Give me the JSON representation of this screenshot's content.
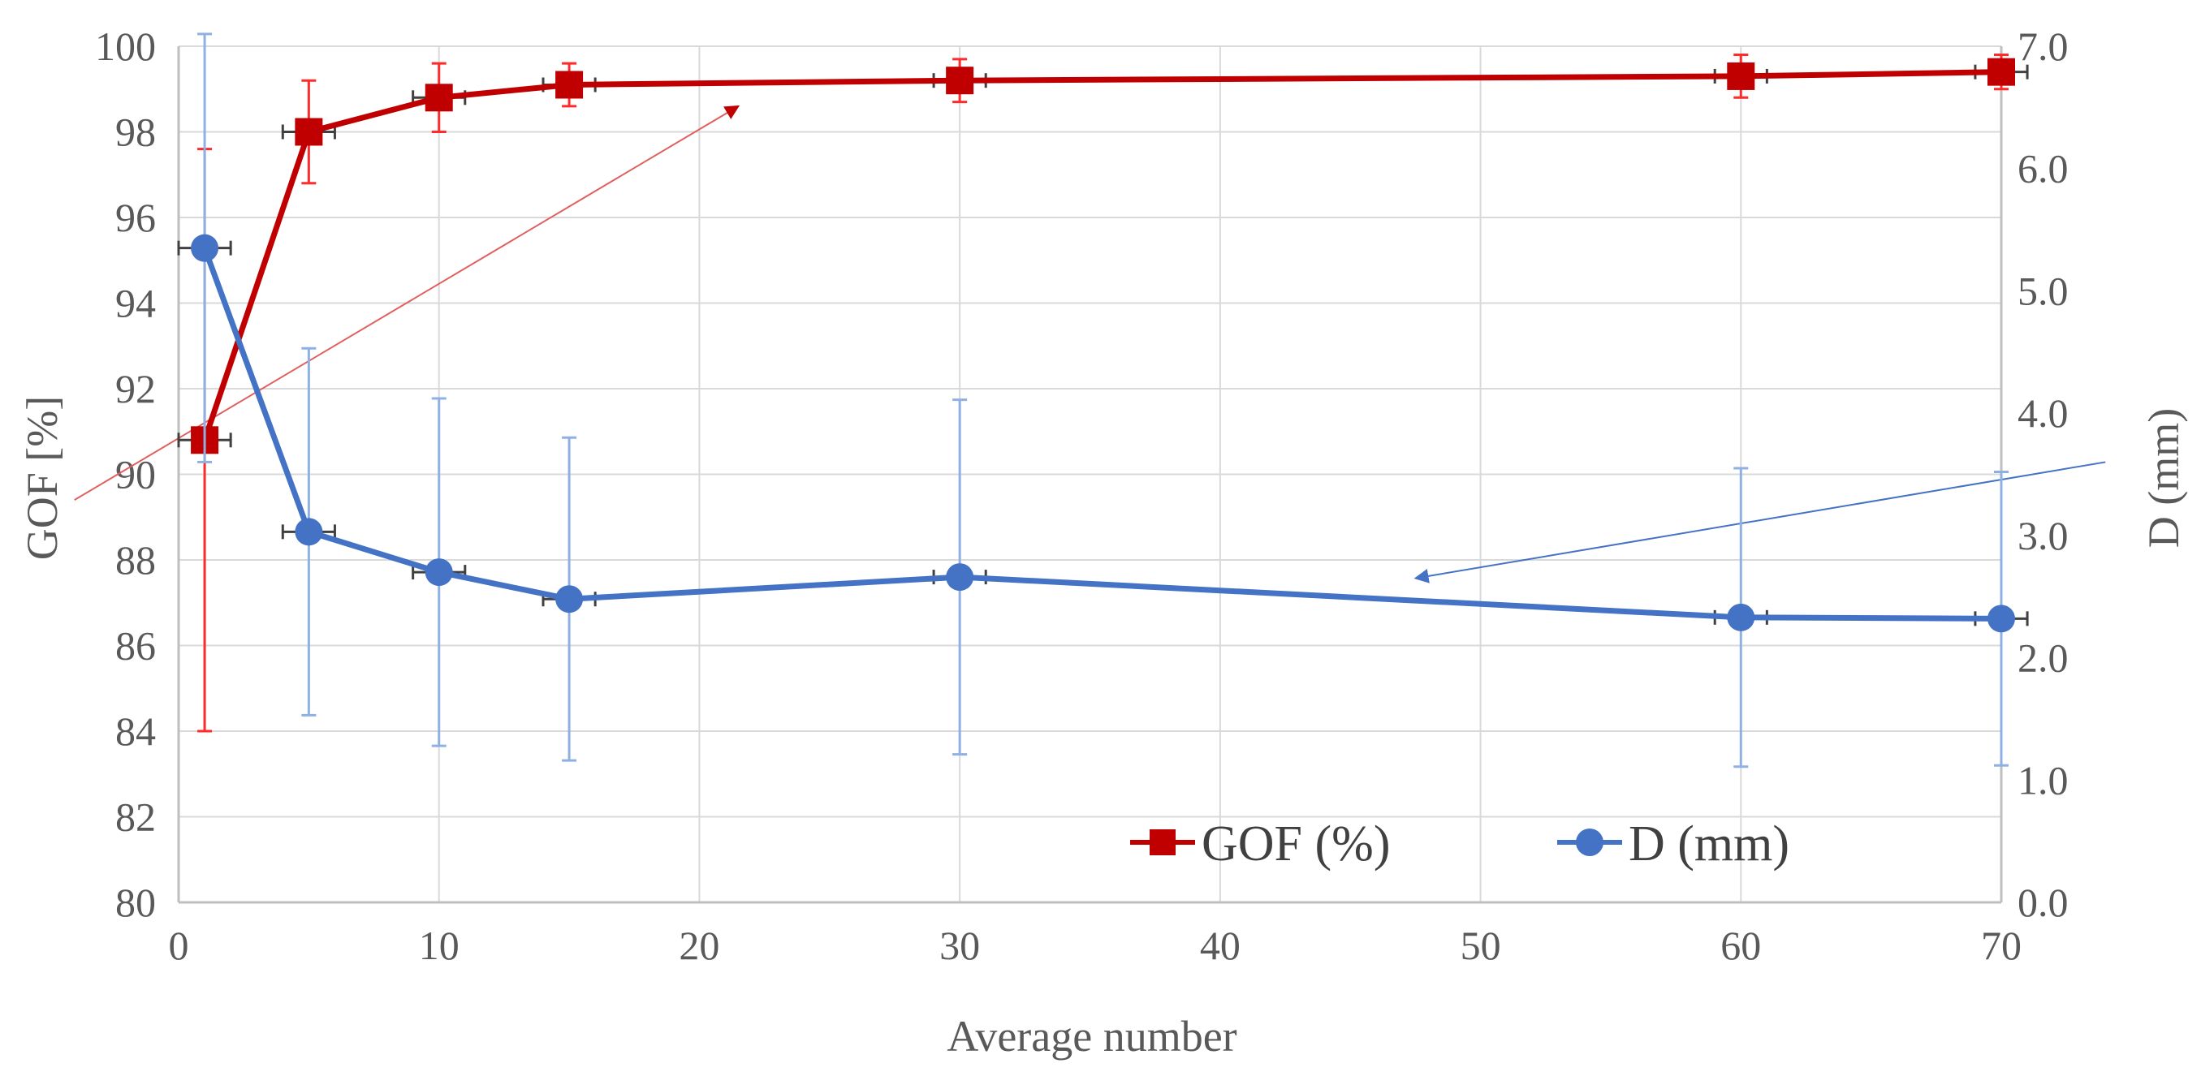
{
  "chart_data": {
    "type": "line",
    "title": "",
    "xlabel": "Average number",
    "ylabel": "GOF [%]",
    "y2label": "D (mm)",
    "xlim": [
      0,
      70
    ],
    "ylim": [
      80,
      100
    ],
    "y2lim": [
      0.0,
      7.0
    ],
    "xticks": [
      "0",
      "10",
      "20",
      "30",
      "40",
      "50",
      "60",
      "70"
    ],
    "yticks": [
      "80",
      "82",
      "84",
      "86",
      "88",
      "90",
      "92",
      "94",
      "96",
      "98",
      "100"
    ],
    "y2ticks": [
      "0.0",
      "1.0",
      "2.0",
      "3.0",
      "4.0",
      "5.0",
      "6.0",
      "7.0"
    ],
    "grid": true,
    "legend_position": "bottom-right",
    "series": [
      {
        "name": "GOF (%)",
        "axis": "left",
        "color": "#c00000",
        "errorbar_color": "#ff2a2a",
        "marker": "square",
        "x": [
          1,
          5,
          10,
          15,
          30,
          60,
          70
        ],
        "y": [
          90.8,
          98.0,
          98.8,
          99.1,
          99.2,
          99.3,
          99.4
        ],
        "y_err": [
          6.8,
          1.2,
          0.8,
          0.5,
          0.5,
          0.5,
          0.4
        ],
        "x_err": [
          1,
          1,
          1,
          1,
          1,
          1,
          1
        ]
      },
      {
        "name": "D (mm)",
        "axis": "right",
        "color": "#4472c4",
        "errorbar_color": "#8fb0e3",
        "marker": "circle",
        "x": [
          1,
          5,
          10,
          15,
          30,
          60,
          70
        ],
        "y": [
          5.35,
          3.03,
          2.7,
          2.48,
          2.66,
          2.33,
          2.32
        ],
        "y_err": [
          1.75,
          1.5,
          1.42,
          1.32,
          1.45,
          1.22,
          1.2
        ],
        "x_err": [
          1,
          1,
          1,
          1,
          1,
          1,
          1
        ]
      }
    ],
    "annotations": [
      {
        "type": "arrow",
        "color": "#e06060",
        "from": {
          "x": -4,
          "y": 89.4,
          "axis": "left"
        },
        "to": {
          "x": 21.5,
          "y": 98.6,
          "axis": "left"
        }
      },
      {
        "type": "arrow",
        "color": "#4472c4",
        "from": {
          "x": 74,
          "y": 3.6,
          "axis": "right"
        },
        "to": {
          "x": 47.5,
          "y": 2.65,
          "axis": "right"
        }
      }
    ]
  }
}
